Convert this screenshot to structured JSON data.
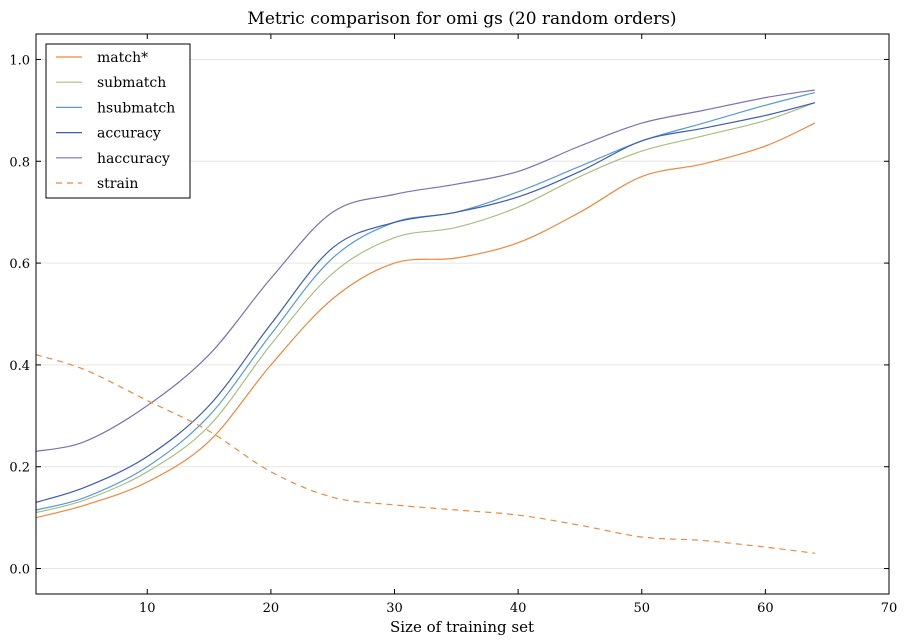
{
  "chart_data": {
    "type": "line",
    "title": "Metric comparison for omi gs (20 random orders)",
    "xlabel": "Size of training set",
    "ylabel": "",
    "xlim": [
      1,
      70
    ],
    "ylim": [
      -0.05,
      1.05
    ],
    "xticks": [
      10,
      20,
      30,
      40,
      50,
      60,
      70
    ],
    "yticks": [
      0.0,
      0.2,
      0.4,
      0.6,
      0.8,
      1.0
    ],
    "xtick_labels": [
      "10",
      "20",
      "30",
      "40",
      "50",
      "60",
      "70"
    ],
    "ytick_labels": [
      "0.0",
      "0.2",
      "0.4",
      "0.6",
      "0.8",
      "1.0"
    ],
    "grid": true,
    "legend_position": "top-left",
    "x": [
      1,
      5,
      10,
      15,
      20,
      25,
      30,
      35,
      40,
      45,
      50,
      55,
      60,
      64
    ],
    "series": [
      {
        "name": "match*",
        "color": "#f0883e",
        "dash": false,
        "values": [
          0.1,
          0.125,
          0.17,
          0.25,
          0.4,
          0.53,
          0.6,
          0.61,
          0.64,
          0.7,
          0.77,
          0.795,
          0.83,
          0.875
        ]
      },
      {
        "name": "submatch",
        "color": "#a9bf83",
        "dash": false,
        "values": [
          0.11,
          0.135,
          0.19,
          0.28,
          0.44,
          0.58,
          0.65,
          0.67,
          0.71,
          0.77,
          0.82,
          0.85,
          0.88,
          0.915
        ]
      },
      {
        "name": "hsubmatch",
        "color": "#5a9bd5",
        "dash": false,
        "values": [
          0.115,
          0.14,
          0.2,
          0.3,
          0.46,
          0.61,
          0.68,
          0.7,
          0.74,
          0.79,
          0.84,
          0.875,
          0.91,
          0.935
        ]
      },
      {
        "name": "accuracy",
        "color": "#3d5db4",
        "dash": false,
        "values": [
          0.13,
          0.16,
          0.22,
          0.32,
          0.48,
          0.63,
          0.68,
          0.7,
          0.73,
          0.78,
          0.84,
          0.865,
          0.89,
          0.915
        ]
      },
      {
        "name": "haccuracy",
        "color": "#7c72b0",
        "dash": false,
        "values": [
          0.23,
          0.25,
          0.32,
          0.42,
          0.57,
          0.7,
          0.735,
          0.755,
          0.78,
          0.83,
          0.875,
          0.9,
          0.925,
          0.94
        ]
      },
      {
        "name": "strain",
        "color": "#f0883e",
        "dash": true,
        "values": [
          0.42,
          0.39,
          0.33,
          0.27,
          0.19,
          0.14,
          0.125,
          0.115,
          0.105,
          0.085,
          0.062,
          0.055,
          0.042,
          0.03
        ]
      }
    ]
  }
}
